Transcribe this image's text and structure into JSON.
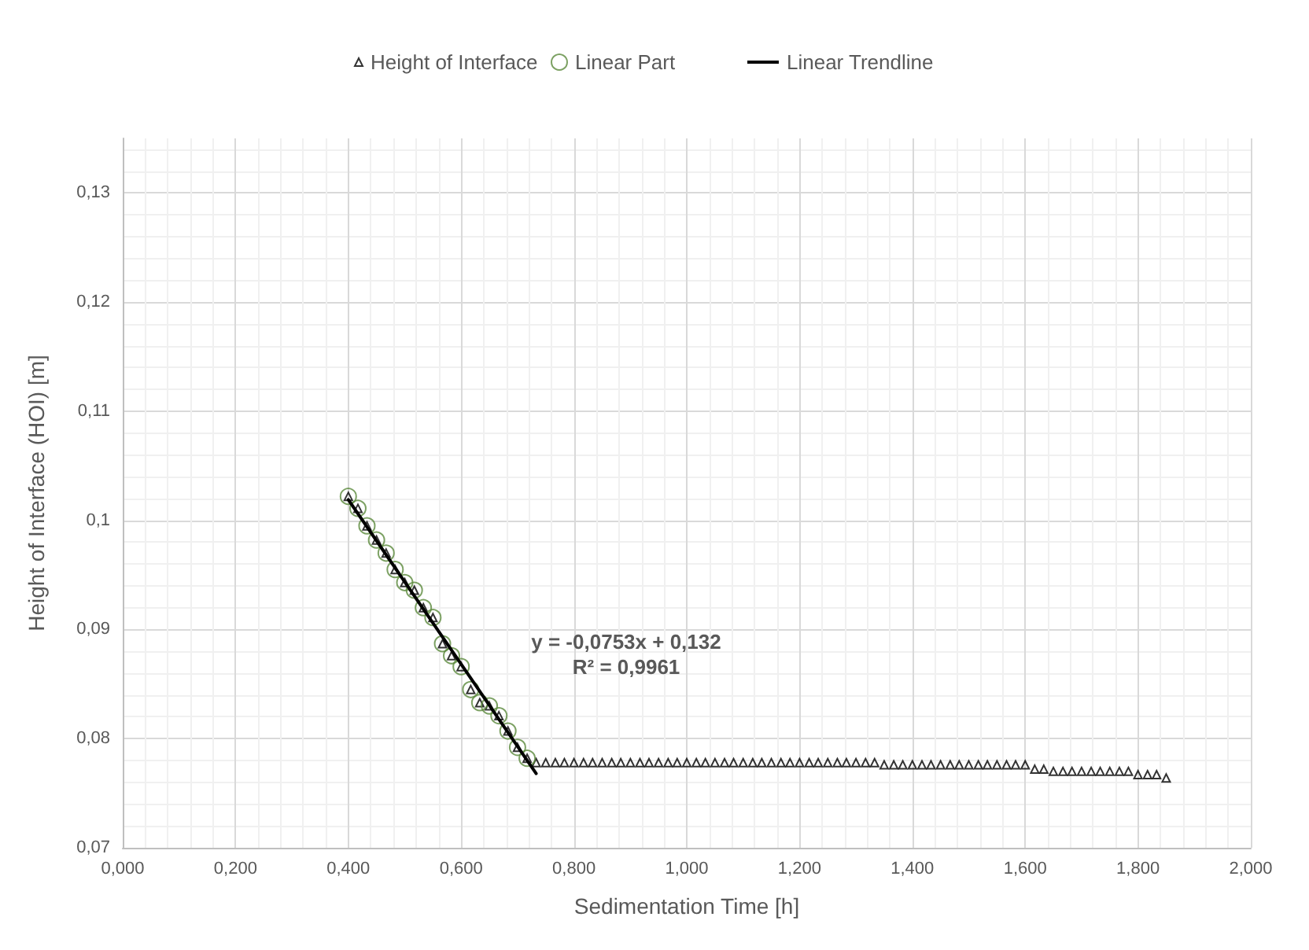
{
  "chart_data": {
    "type": "scatter",
    "xlabel": "Sedimentation Time [h]",
    "ylabel": "Height of Interface (HOI) [m]",
    "xlim": [
      0,
      2
    ],
    "ylim": [
      0.07,
      0.135
    ],
    "xticks": [
      {
        "value": 0,
        "label": "0,000"
      },
      {
        "value": 0.2,
        "label": "0,200"
      },
      {
        "value": 0.4,
        "label": "0,400"
      },
      {
        "value": 0.6,
        "label": "0,600"
      },
      {
        "value": 0.8,
        "label": "0,800"
      },
      {
        "value": 1,
        "label": "1,000"
      },
      {
        "value": 1.2,
        "label": "1,200"
      },
      {
        "value": 1.4,
        "label": "1,400"
      },
      {
        "value": 1.6,
        "label": "1,600"
      },
      {
        "value": 1.8,
        "label": "1,800"
      },
      {
        "value": 2,
        "label": "2,000"
      }
    ],
    "yticks": [
      {
        "value": 0.07,
        "label": "0,07"
      },
      {
        "value": 0.08,
        "label": "0,08"
      },
      {
        "value": 0.09,
        "label": "0,09"
      },
      {
        "value": 0.1,
        "label": "0,1"
      },
      {
        "value": 0.11,
        "label": "0,11"
      },
      {
        "value": 0.12,
        "label": "0,12"
      },
      {
        "value": 0.13,
        "label": "0,13"
      }
    ],
    "grid": true,
    "legend": "top",
    "annotations": [
      "y = -0,0753x + 0,132",
      "R² = 0,9961"
    ],
    "series": [
      {
        "name": "Height of Interface",
        "marker": "triangle",
        "color": "#000000",
        "x": [
          0.4,
          0.417,
          0.433,
          0.45,
          0.467,
          0.483,
          0.5,
          0.517,
          0.533,
          0.55,
          0.567,
          0.583,
          0.6,
          0.617,
          0.633,
          0.65,
          0.667,
          0.683,
          0.7,
          0.717,
          0.733,
          0.75,
          0.767,
          0.783,
          0.8,
          0.817,
          0.833,
          0.85,
          0.867,
          0.883,
          0.9,
          0.917,
          0.933,
          0.95,
          0.967,
          0.983,
          1,
          1.017,
          1.033,
          1.05,
          1.067,
          1.083,
          1.1,
          1.117,
          1.133,
          1.15,
          1.167,
          1.183,
          1.2,
          1.217,
          1.233,
          1.25,
          1.267,
          1.283,
          1.3,
          1.317,
          1.333,
          1.35,
          1.367,
          1.383,
          1.4,
          1.417,
          1.433,
          1.45,
          1.467,
          1.483,
          1.5,
          1.517,
          1.533,
          1.55,
          1.567,
          1.583,
          1.6,
          1.617,
          1.633,
          1.65,
          1.667,
          1.683,
          1.7,
          1.717,
          1.733,
          1.75,
          1.767,
          1.783,
          1.8,
          1.817,
          1.833,
          1.85
        ],
        "values": [
          0.1022,
          0.1011,
          0.0995,
          0.0982,
          0.097,
          0.0955,
          0.0943,
          0.0936,
          0.092,
          0.0911,
          0.0887,
          0.0876,
          0.0866,
          0.0845,
          0.0833,
          0.083,
          0.0821,
          0.0807,
          0.0792,
          0.0782,
          0.0778,
          0.0778,
          0.0778,
          0.0778,
          0.0778,
          0.0778,
          0.0778,
          0.0778,
          0.0778,
          0.0778,
          0.0778,
          0.0778,
          0.0778,
          0.0778,
          0.0778,
          0.0778,
          0.0778,
          0.0778,
          0.0778,
          0.0778,
          0.0778,
          0.0778,
          0.0778,
          0.0778,
          0.0778,
          0.0778,
          0.0778,
          0.0778,
          0.0778,
          0.0778,
          0.0778,
          0.0778,
          0.0778,
          0.0778,
          0.0778,
          0.0778,
          0.0778,
          0.0776,
          0.0776,
          0.0776,
          0.0776,
          0.0776,
          0.0776,
          0.0776,
          0.0776,
          0.0776,
          0.0776,
          0.0776,
          0.0776,
          0.0776,
          0.0776,
          0.0776,
          0.0776,
          0.0772,
          0.0772,
          0.077,
          0.077,
          0.077,
          0.077,
          0.077,
          0.077,
          0.077,
          0.077,
          0.077,
          0.0767,
          0.0767,
          0.0767,
          0.0764
        ]
      },
      {
        "name": "Linear Part",
        "marker": "circle",
        "color": "#5b8a3c",
        "x": [
          0.4,
          0.417,
          0.433,
          0.45,
          0.467,
          0.483,
          0.5,
          0.517,
          0.533,
          0.55,
          0.567,
          0.583,
          0.6,
          0.617,
          0.633,
          0.65,
          0.667,
          0.683,
          0.7,
          0.717
        ],
        "values": [
          0.1022,
          0.1011,
          0.0995,
          0.0982,
          0.097,
          0.0955,
          0.0943,
          0.0936,
          0.092,
          0.0911,
          0.0887,
          0.0876,
          0.0866,
          0.0845,
          0.0833,
          0.083,
          0.0821,
          0.0807,
          0.0792,
          0.0782
        ]
      },
      {
        "name": "Linear Trendline",
        "type": "line",
        "marker": "none",
        "line_style": "solid",
        "color": "#000000",
        "x": [
          0.4,
          0.733
        ],
        "values": [
          0.1019,
          0.0768
        ]
      }
    ]
  }
}
